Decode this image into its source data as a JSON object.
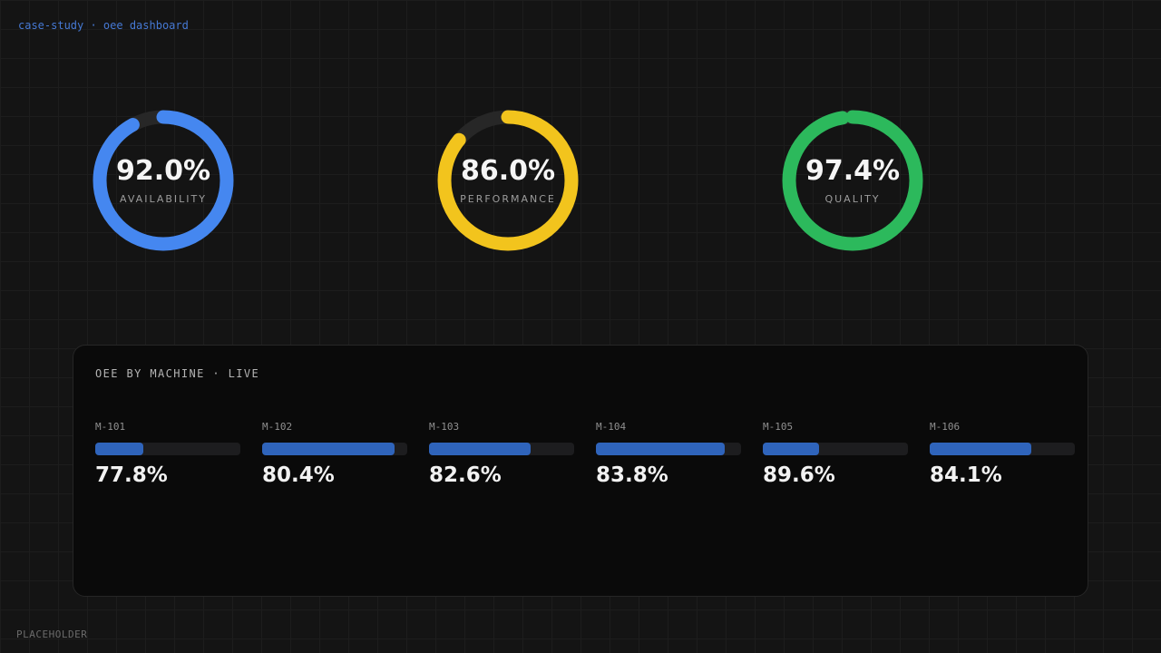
{
  "header": {
    "breadcrumb": "case-study · oee dashboard"
  },
  "footer": {
    "label": "PLACEHOLDER"
  },
  "colors": {
    "background": "#141414",
    "grid_line": "#1d1d1d",
    "panel_background": "#0a0a0a",
    "panel_border": "#262626",
    "gauge_track": "#272727",
    "bar_track": "#1d1d1f",
    "bar_fill": "#2f64bb",
    "breadcrumb_blue": "#4679d4"
  },
  "gauges": [
    {
      "name": "availability",
      "value": 92.0,
      "value_label": "92.0%",
      "label": "AVAILABILITY",
      "color": "#4587f0"
    },
    {
      "name": "performance",
      "value": 86.0,
      "value_label": "86.0%",
      "label": "PERFORMANCE",
      "color": "#f2c41d"
    },
    {
      "name": "quality",
      "value": 97.4,
      "value_label": "97.4%",
      "label": "QUALITY",
      "color": "#2cb95c"
    }
  ],
  "panel": {
    "title": "OEE BY MACHINE · LIVE",
    "bar_color": "#2f64bb",
    "machines": [
      {
        "name": "M-101",
        "value": 77.8,
        "value_label": "77.8%",
        "bar_fill_pct": 33
      },
      {
        "name": "M-102",
        "value": 80.4,
        "value_label": "80.4%",
        "bar_fill_pct": 91
      },
      {
        "name": "M-103",
        "value": 82.6,
        "value_label": "82.6%",
        "bar_fill_pct": 70
      },
      {
        "name": "M-104",
        "value": 83.8,
        "value_label": "83.8%",
        "bar_fill_pct": 89
      },
      {
        "name": "M-105",
        "value": 89.6,
        "value_label": "89.6%",
        "bar_fill_pct": 39
      },
      {
        "name": "M-106",
        "value": 84.1,
        "value_label": "84.1%",
        "bar_fill_pct": 70
      }
    ]
  },
  "chart_data": [
    {
      "type": "pie",
      "subtype": "donut-gauge",
      "title": "OEE KPI gauges",
      "categories": [
        "AVAILABILITY",
        "PERFORMANCE",
        "QUALITY"
      ],
      "values": [
        92.0,
        86.0,
        97.4
      ],
      "unit": "%",
      "colors": [
        "#4587f0",
        "#f2c41d",
        "#2cb95c"
      ],
      "range": [
        0,
        100
      ],
      "start_angle": "12-o'clock, clockwise"
    },
    {
      "type": "bar",
      "title": "OEE BY MACHINE · LIVE",
      "orientation": "horizontal",
      "categories": [
        "M-101",
        "M-102",
        "M-103",
        "M-104",
        "M-105",
        "M-106"
      ],
      "values": [
        77.8,
        80.4,
        82.6,
        83.8,
        89.6,
        84.1
      ],
      "unit": "%",
      "bar_fill_display_pct": [
        33,
        91,
        70,
        89,
        39,
        70
      ],
      "bar_color": "#2f64bb",
      "grid": false,
      "legend": "none"
    }
  ]
}
